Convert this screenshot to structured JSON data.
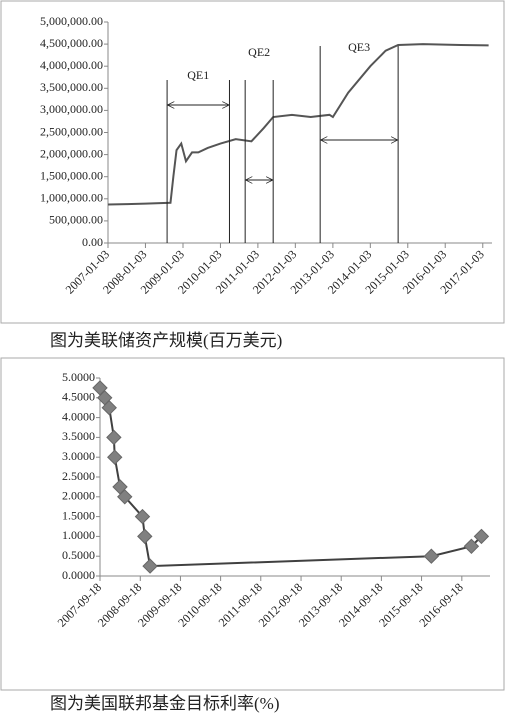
{
  "chart_data": [
    {
      "type": "line",
      "caption": "图为美联储资产规模(百万美元)",
      "x": [
        "2007-01-03",
        "2007-07-03",
        "2008-01-03",
        "2008-09-03",
        "2008-10-01",
        "2008-11-01",
        "2008-12-17",
        "2009-02-01",
        "2009-04-01",
        "2009-06-01",
        "2009-09-01",
        "2010-01-03",
        "2010-06-01",
        "2010-11-01",
        "2011-03-01",
        "2011-06-01",
        "2011-12-01",
        "2012-06-01",
        "2012-12-01",
        "2013-01-03",
        "2013-06-01",
        "2014-01-03",
        "2014-06-01",
        "2014-10-01",
        "2015-06-01",
        "2016-06-01",
        "2017-03-01"
      ],
      "values": [
        870000,
        880000,
        890000,
        910000,
        1500000,
        2100000,
        2250000,
        1850000,
        2050000,
        2050000,
        2150000,
        2250000,
        2350000,
        2300000,
        2600000,
        2850000,
        2900000,
        2850000,
        2900000,
        2850000,
        3400000,
        4000000,
        4350000,
        4480000,
        4500000,
        4480000,
        4470000
      ],
      "color": "#555555",
      "xlim": [
        "2007-01-03",
        "2017-04-03"
      ],
      "xticks": [
        "2007-01-03",
        "2008-01-03",
        "2009-01-03",
        "2010-01-03",
        "2011-01-03",
        "2012-01-03",
        "2013-01-03",
        "2014-01-03",
        "2015-01-03",
        "2016-01-03",
        "2017-01-03"
      ],
      "ylim": [
        0,
        5000000
      ],
      "yticks": [
        {
          "value": 0,
          "label": "0.00"
        },
        {
          "value": 500000,
          "label": "500,000.00"
        },
        {
          "value": 1000000,
          "label": "1,000,000.00"
        },
        {
          "value": 1500000,
          "label": "1,500,000.00"
        },
        {
          "value": 2000000,
          "label": "2,000,000.00"
        },
        {
          "value": 2500000,
          "label": "2,500,000.00"
        },
        {
          "value": 3000000,
          "label": "3,000,000.00"
        },
        {
          "value": 3500000,
          "label": "3,500,000.00"
        },
        {
          "value": 4000000,
          "label": "4,000,000.00"
        },
        {
          "value": 4500000,
          "label": "4,500,000.00"
        },
        {
          "value": 5000000,
          "label": "5,000,000.00"
        }
      ],
      "annotations": [
        {
          "label": "QE1",
          "start": "2008-08-01",
          "end": "2010-04-01"
        },
        {
          "label": "QE2",
          "start": "2010-09-01",
          "end": "2011-06-01"
        },
        {
          "label": "QE3",
          "start": "2012-09-01",
          "end": "2014-10-01"
        }
      ]
    },
    {
      "type": "line-marker",
      "caption": "图为美国联邦基金目标利率(%)",
      "x": [
        "2007-09-18",
        "2007-10-31",
        "2007-12-11",
        "2008-01-22",
        "2008-01-30",
        "2008-03-18",
        "2008-04-30",
        "2008-10-08",
        "2008-10-29",
        "2008-12-16",
        "2015-12-16",
        "2016-12-14",
        "2017-03-15"
      ],
      "values": [
        4.75,
        4.5,
        4.25,
        3.5,
        3.0,
        2.25,
        2.0,
        1.5,
        1.0,
        0.25,
        0.5,
        0.75,
        1.0
      ],
      "color": "#404040",
      "marker_color": "#808080",
      "xlim": [
        "2007-09-18",
        "2017-06-01"
      ],
      "xticks": [
        "2007-09-18",
        "2008-09-18",
        "2009-09-18",
        "2010-09-18",
        "2011-09-18",
        "2012-09-18",
        "2013-09-18",
        "2014-09-18",
        "2015-09-18",
        "2016-09-18"
      ],
      "ylim": [
        0,
        5
      ],
      "yticks": [
        {
          "value": 0,
          "label": "0.0000"
        },
        {
          "value": 0.5,
          "label": "0.5000"
        },
        {
          "value": 1,
          "label": "1.0000"
        },
        {
          "value": 1.5,
          "label": "1.5000"
        },
        {
          "value": 2,
          "label": "2.0000"
        },
        {
          "value": 2.5,
          "label": "2.5000"
        },
        {
          "value": 3,
          "label": "3.0000"
        },
        {
          "value": 3.5,
          "label": "3.5000"
        },
        {
          "value": 4,
          "label": "4.0000"
        },
        {
          "value": 4.5,
          "label": "4.5000"
        },
        {
          "value": 5,
          "label": "5.0000"
        }
      ]
    }
  ]
}
